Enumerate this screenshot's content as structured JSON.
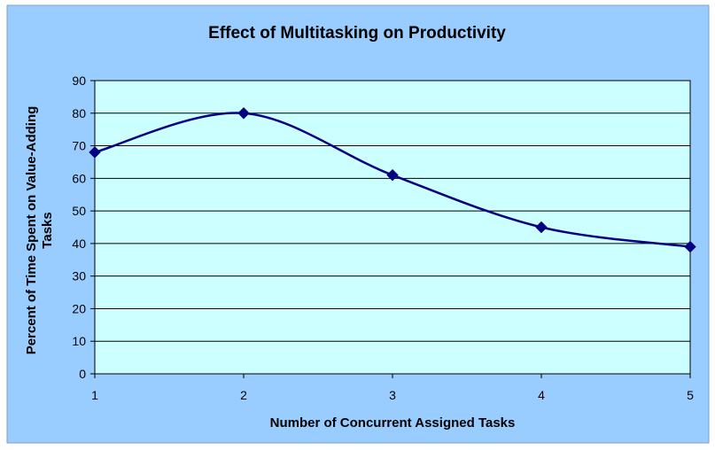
{
  "chart_data": {
    "type": "line",
    "title": "Effect of Multitasking on Productivity",
    "xlabel": "Number of Concurrent Assigned Tasks",
    "ylabel": "Percent of Time Spent on Value-Adding Tasks",
    "ylabel_lines": [
      "Percent of Time Spent on Value-Adding",
      "Tasks"
    ],
    "x": [
      1,
      2,
      3,
      4,
      5
    ],
    "series": [
      {
        "values": [
          68,
          80,
          61,
          45,
          39
        ]
      }
    ],
    "xlim": [
      1,
      5
    ],
    "ylim": [
      0,
      90
    ],
    "x_ticks": [
      "1",
      "2",
      "3",
      "4",
      "5"
    ],
    "y_ticks": [
      "0",
      "10",
      "20",
      "30",
      "40",
      "50",
      "60",
      "70",
      "80",
      "90"
    ],
    "grid": true,
    "legend": false,
    "smooth": true,
    "marker": "diamond",
    "colors": {
      "outer_background": "#99CCFF",
      "plot_background": "#CCFFFF",
      "line": "#000080",
      "marker": "#000080",
      "gridline": "#000000",
      "axis": "#000000"
    }
  }
}
